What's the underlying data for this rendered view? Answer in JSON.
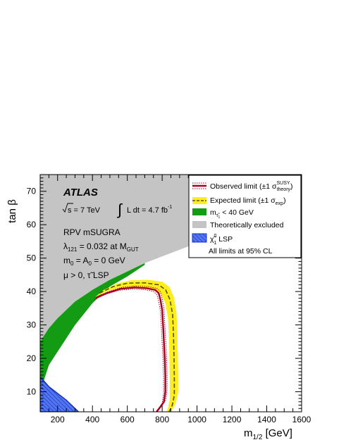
{
  "chart_data": {
    "type": "area",
    "xlabel": "m",
    "xlabel_sub": "1/2",
    "xlabel_unit": "[GeV]",
    "ylabel": "tan β",
    "xlim": [
      100,
      1600
    ],
    "ylim": [
      4,
      75
    ],
    "x_ticks": [
      200,
      400,
      600,
      800,
      1000,
      1200,
      1400,
      1600
    ],
    "y_ticks": [
      10,
      20,
      30,
      40,
      50,
      60,
      70
    ],
    "annotations": {
      "experiment": "ATLAS",
      "sqrt_s": "s = 7 TeV",
      "lumi_integral": "∫",
      "lumi_text": "L dt = 4.7 fb",
      "lumi_sup": "-1",
      "model": "RPV mSUGRA",
      "lambda_main": "λ",
      "lambda_sub": "121",
      "lambda_value": " = 0.032 at M",
      "lambda_mgut_sub": "GUT",
      "m0_main": "m",
      "m0_sub": "0",
      "m0_mid": " = A",
      "a0_sub": "0",
      "m0_tail": " = 0 GeV",
      "mu_text": "μ > 0, τ̃ LSP"
    },
    "legend": {
      "position": "top-right",
      "observed": "Observed limit (±1 σ",
      "observed_sup": "SUSY",
      "observed_sub": "theory",
      "observed_close": ")",
      "expected": "Expected limit (±1 σ",
      "expected_sub": "exp",
      "expected_close": ")",
      "mtau_main": "m",
      "mtau_sub": "τ̃",
      "mtau_sub2": "1",
      "mtau_tail": " < 40 GeV",
      "theory": "Theoretically excluded",
      "lsp_main": "χ̃",
      "lsp_sup": "0",
      "lsp_sub": "1",
      "lsp_tail": " LSP",
      "note": "All limits at 95% CL"
    },
    "colors": {
      "observed": "#a50021",
      "expected_band": "#ffee1e",
      "expected_line": "#555500",
      "mtau": "#139c13",
      "theory": "#c4c4c4",
      "lsp_fill": "#5577ee",
      "lsp_edge": "#1133cc"
    },
    "series": [
      {
        "name": "Theoretically excluded",
        "region": "boundary",
        "x": [
          100,
          200,
          300,
          400,
          500,
          600,
          700,
          800,
          900,
          1000,
          1050
        ],
        "y": [
          25,
          32,
          37,
          40.5,
          43.5,
          46,
          48.5,
          50.5,
          52.5,
          54.5,
          55.5
        ]
      },
      {
        "name": "m_tau1 < 40 GeV",
        "region": "band",
        "x": [
          100,
          150,
          200,
          300,
          400,
          500,
          600,
          700
        ],
        "y_low": [
          10,
          18,
          22,
          30,
          36.5,
          41.5,
          44.5,
          48
        ],
        "y_high": [
          25,
          29,
          32,
          37,
          40.5,
          43.5,
          46,
          48.5
        ]
      },
      {
        "name": "χ̃01 LSP",
        "region": "boundary",
        "x": [
          100,
          150,
          200,
          250,
          300,
          320
        ],
        "y": [
          14.5,
          11.5,
          9.5,
          7.5,
          5,
          4
        ]
      },
      {
        "name": "Observed limit",
        "region": "contour",
        "x": [
          418,
          480,
          560,
          640,
          710,
          760,
          780,
          790,
          800,
          805,
          810,
          815,
          818,
          818,
          810,
          790,
          768
        ],
        "y": [
          38,
          39.5,
          40.8,
          41.2,
          41,
          40.5,
          39.5,
          37.5,
          34.5,
          30,
          25,
          20,
          15,
          10,
          7,
          5.5,
          4
        ]
      },
      {
        "name": "Expected limit",
        "region": "contour",
        "x": [
          440,
          520,
          600,
          700,
          780,
          820,
          845,
          860,
          865,
          868,
          870,
          870,
          858,
          840
        ],
        "y": [
          39.5,
          41.5,
          42.5,
          42.6,
          42,
          40.5,
          37.5,
          33,
          27,
          20,
          14,
          9,
          6,
          4
        ]
      }
    ]
  }
}
